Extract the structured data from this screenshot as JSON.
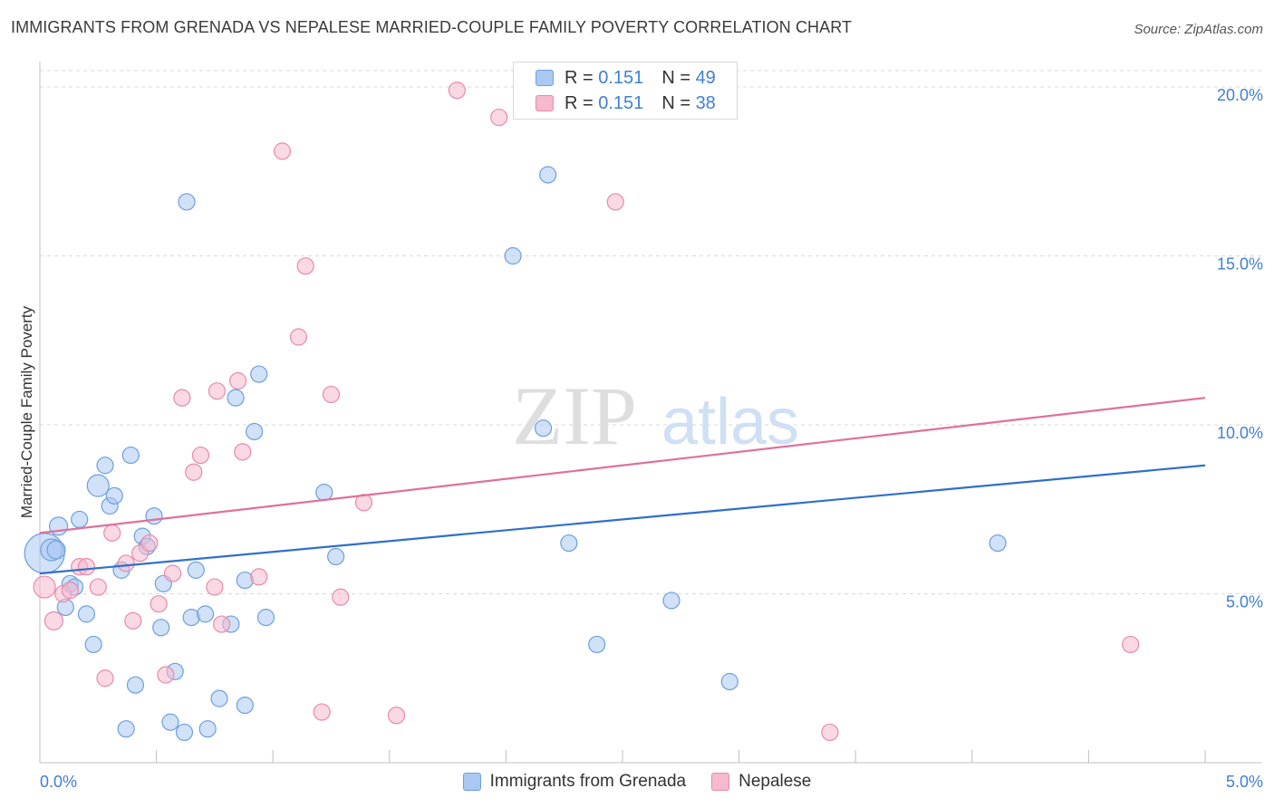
{
  "header": {
    "title": "IMMIGRANTS FROM GRENADA VS NEPALESE MARRIED-COUPLE FAMILY POVERTY CORRELATION CHART",
    "source": "Source: ZipAtlas.com"
  },
  "watermark": {
    "zip": "ZIP",
    "atlas": "atlas"
  },
  "colors": {
    "blue_fill": "#a9c9f2",
    "blue_stroke": "#6d9fdf",
    "blue_line": "#2f6fcc",
    "pink_fill": "#f6b9cd",
    "pink_stroke": "#e88aa9",
    "pink_line": "#e0709a",
    "tick_label": "#3f7fd6",
    "grid": "#d9d9d9"
  },
  "stats": [
    {
      "r_label": "R =",
      "r_value": "0.151",
      "n_label": "N =",
      "n_value": "49",
      "color": "#a9c9f2",
      "stroke": "#6d9fdf"
    },
    {
      "r_label": "R =",
      "r_value": "0.151",
      "n_label": "N =",
      "n_value": "38",
      "color": "#f6b9cd",
      "stroke": "#e88aa9"
    }
  ],
  "legend": [
    {
      "label": "Immigrants from Grenada",
      "color": "#a9c9f2",
      "stroke": "#6d9fdf"
    },
    {
      "label": "Nepalese",
      "color": "#f6b9cd",
      "stroke": "#e88aa9"
    }
  ],
  "chart_data": {
    "type": "scatter",
    "title": "IMMIGRANTS FROM GRENADA VS NEPALESE MARRIED-COUPLE FAMILY POVERTY CORRELATION CHART",
    "xlabel": "",
    "ylabel": "Married-Couple Family Poverty",
    "xlim": [
      0,
      5
    ],
    "ylim": [
      0,
      20.5
    ],
    "x_tick_labels": [
      {
        "value": 0,
        "label": "0.0%"
      },
      {
        "value": 5,
        "label": "5.0%"
      }
    ],
    "y_tick_labels": [
      {
        "value": 5,
        "label": "5.0%"
      },
      {
        "value": 10,
        "label": "10.0%"
      },
      {
        "value": 15,
        "label": "15.0%"
      },
      {
        "value": 20,
        "label": "20.0%"
      }
    ],
    "grid": true,
    "series": [
      {
        "name": "Immigrants from Grenada",
        "r": 0.151,
        "n": 49,
        "trend": {
          "x": [
            0,
            5
          ],
          "y": [
            5.6,
            8.8
          ]
        },
        "points": [
          {
            "x": 0.02,
            "y": 6.2,
            "s": 22
          },
          {
            "x": 0.05,
            "y": 6.3,
            "s": 12
          },
          {
            "x": 0.07,
            "y": 6.3,
            "s": 10
          },
          {
            "x": 0.08,
            "y": 7.0,
            "s": 10
          },
          {
            "x": 0.11,
            "y": 4.6,
            "s": 9
          },
          {
            "x": 0.13,
            "y": 5.3,
            "s": 9
          },
          {
            "x": 0.15,
            "y": 5.2,
            "s": 9
          },
          {
            "x": 0.17,
            "y": 7.2,
            "s": 9
          },
          {
            "x": 0.2,
            "y": 4.4,
            "s": 9
          },
          {
            "x": 0.23,
            "y": 3.5,
            "s": 9
          },
          {
            "x": 0.25,
            "y": 8.2,
            "s": 12
          },
          {
            "x": 0.28,
            "y": 8.8,
            "s": 9
          },
          {
            "x": 0.3,
            "y": 7.6,
            "s": 9
          },
          {
            "x": 0.32,
            "y": 7.9,
            "s": 9
          },
          {
            "x": 0.35,
            "y": 5.7,
            "s": 9
          },
          {
            "x": 0.37,
            "y": 1.0,
            "s": 9
          },
          {
            "x": 0.39,
            "y": 9.1,
            "s": 9
          },
          {
            "x": 0.41,
            "y": 2.3,
            "s": 9
          },
          {
            "x": 0.44,
            "y": 6.7,
            "s": 9
          },
          {
            "x": 0.46,
            "y": 6.4,
            "s": 9
          },
          {
            "x": 0.49,
            "y": 7.3,
            "s": 9
          },
          {
            "x": 0.52,
            "y": 4.0,
            "s": 9
          },
          {
            "x": 0.53,
            "y": 5.3,
            "s": 9
          },
          {
            "x": 0.56,
            "y": 1.2,
            "s": 9
          },
          {
            "x": 0.58,
            "y": 2.7,
            "s": 9
          },
          {
            "x": 0.62,
            "y": 0.9,
            "s": 9
          },
          {
            "x": 0.63,
            "y": 16.6,
            "s": 9
          },
          {
            "x": 0.65,
            "y": 4.3,
            "s": 9
          },
          {
            "x": 0.67,
            "y": 5.7,
            "s": 9
          },
          {
            "x": 0.71,
            "y": 4.4,
            "s": 9
          },
          {
            "x": 0.72,
            "y": 1.0,
            "s": 9
          },
          {
            "x": 0.77,
            "y": 1.9,
            "s": 9
          },
          {
            "x": 0.82,
            "y": 4.1,
            "s": 9
          },
          {
            "x": 0.84,
            "y": 10.8,
            "s": 9
          },
          {
            "x": 0.88,
            "y": 1.7,
            "s": 9
          },
          {
            "x": 0.88,
            "y": 5.4,
            "s": 9
          },
          {
            "x": 0.92,
            "y": 9.8,
            "s": 9
          },
          {
            "x": 0.94,
            "y": 11.5,
            "s": 9
          },
          {
            "x": 0.97,
            "y": 4.3,
            "s": 9
          },
          {
            "x": 1.22,
            "y": 8.0,
            "s": 9
          },
          {
            "x": 1.27,
            "y": 6.1,
            "s": 9
          },
          {
            "x": 2.03,
            "y": 15.0,
            "s": 9
          },
          {
            "x": 2.16,
            "y": 9.9,
            "s": 9
          },
          {
            "x": 2.18,
            "y": 17.4,
            "s": 9
          },
          {
            "x": 2.27,
            "y": 6.5,
            "s": 9
          },
          {
            "x": 2.39,
            "y": 3.5,
            "s": 9
          },
          {
            "x": 2.71,
            "y": 4.8,
            "s": 9
          },
          {
            "x": 2.96,
            "y": 2.4,
            "s": 9
          },
          {
            "x": 4.11,
            "y": 6.5,
            "s": 9
          }
        ]
      },
      {
        "name": "Nepalese",
        "r": 0.151,
        "n": 38,
        "trend": {
          "x": [
            0,
            5
          ],
          "y": [
            6.8,
            10.8
          ]
        },
        "points": [
          {
            "x": 0.02,
            "y": 5.2,
            "s": 12
          },
          {
            "x": 0.06,
            "y": 4.2,
            "s": 10
          },
          {
            "x": 0.1,
            "y": 5.0,
            "s": 9
          },
          {
            "x": 0.13,
            "y": 5.1,
            "s": 9
          },
          {
            "x": 0.17,
            "y": 5.8,
            "s": 9
          },
          {
            "x": 0.2,
            "y": 5.8,
            "s": 9
          },
          {
            "x": 0.25,
            "y": 5.2,
            "s": 9
          },
          {
            "x": 0.28,
            "y": 2.5,
            "s": 9
          },
          {
            "x": 0.31,
            "y": 6.8,
            "s": 9
          },
          {
            "x": 0.37,
            "y": 5.9,
            "s": 9
          },
          {
            "x": 0.4,
            "y": 4.2,
            "s": 9
          },
          {
            "x": 0.43,
            "y": 6.2,
            "s": 9
          },
          {
            "x": 0.47,
            "y": 6.5,
            "s": 9
          },
          {
            "x": 0.51,
            "y": 4.7,
            "s": 9
          },
          {
            "x": 0.54,
            "y": 2.6,
            "s": 9
          },
          {
            "x": 0.57,
            "y": 5.6,
            "s": 9
          },
          {
            "x": 0.61,
            "y": 10.8,
            "s": 9
          },
          {
            "x": 0.66,
            "y": 8.6,
            "s": 9
          },
          {
            "x": 0.69,
            "y": 9.1,
            "s": 9
          },
          {
            "x": 0.75,
            "y": 5.2,
            "s": 9
          },
          {
            "x": 0.76,
            "y": 11.0,
            "s": 9
          },
          {
            "x": 0.78,
            "y": 4.1,
            "s": 9
          },
          {
            "x": 0.85,
            "y": 11.3,
            "s": 9
          },
          {
            "x": 0.87,
            "y": 9.2,
            "s": 9
          },
          {
            "x": 0.94,
            "y": 5.5,
            "s": 9
          },
          {
            "x": 1.04,
            "y": 18.1,
            "s": 9
          },
          {
            "x": 1.11,
            "y": 12.6,
            "s": 9
          },
          {
            "x": 1.14,
            "y": 14.7,
            "s": 9
          },
          {
            "x": 1.21,
            "y": 1.5,
            "s": 9
          },
          {
            "x": 1.25,
            "y": 10.9,
            "s": 9
          },
          {
            "x": 1.29,
            "y": 4.9,
            "s": 9
          },
          {
            "x": 1.39,
            "y": 7.7,
            "s": 9
          },
          {
            "x": 1.53,
            "y": 1.4,
            "s": 9
          },
          {
            "x": 1.79,
            "y": 19.9,
            "s": 9
          },
          {
            "x": 1.97,
            "y": 19.1,
            "s": 9
          },
          {
            "x": 2.47,
            "y": 16.6,
            "s": 9
          },
          {
            "x": 3.39,
            "y": 0.9,
            "s": 9
          },
          {
            "x": 4.68,
            "y": 3.5,
            "s": 9
          }
        ]
      }
    ]
  }
}
